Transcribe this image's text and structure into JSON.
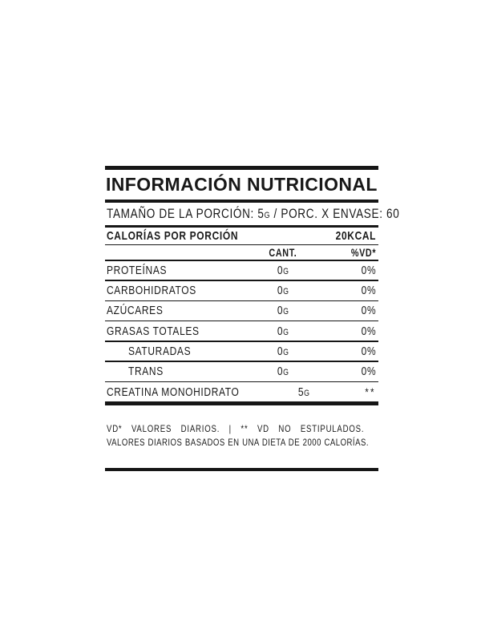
{
  "colors": {
    "ink": "#1a1a1a",
    "background": "#ffffff"
  },
  "nutrition_label": {
    "title": "INFORMACIÓN NUTRICIONAL",
    "serving": {
      "label": "TAMAÑO DE LA PORCIÓN:",
      "amount": "5",
      "unit": "G",
      "divider": "/",
      "count_label": "PORC. X ENVASE:",
      "count_value": "60"
    },
    "calories": {
      "label": "CALORÍAS POR PORCIÓN",
      "value": "20KCAL"
    },
    "columns": {
      "amount": "CANT.",
      "daily_value": "%VD*"
    },
    "rows": [
      {
        "name": "PROTEÍNAS",
        "amount": "0",
        "unit": "G",
        "dv": "0%",
        "indent": false
      },
      {
        "name": "CARBOHIDRATOS",
        "amount": "0",
        "unit": "G",
        "dv": "0%",
        "indent": false
      },
      {
        "name": "AZÚCARES",
        "amount": "0",
        "unit": "G",
        "dv": "0%",
        "indent": false
      },
      {
        "name": "GRASAS TOTALES",
        "amount": "0",
        "unit": "G",
        "dv": "0%",
        "indent": false
      },
      {
        "name": "SATURADAS",
        "amount": "0",
        "unit": "G",
        "dv": "0%",
        "indent": true
      },
      {
        "name": "TRANS",
        "amount": "0",
        "unit": "G",
        "dv": "0%",
        "indent": true
      },
      {
        "name": "CREATINA MONOHIDRATO",
        "amount": "5",
        "unit": "G",
        "dv": "**",
        "indent": false
      }
    ],
    "footnotes": [
      "VD* VALORES DIARIOS. | ** VD NO ESTIPULADOS.",
      "VALORES DIARIOS BASADOS EN UNA DIETA DE 2000 CALORÍAS."
    ]
  }
}
